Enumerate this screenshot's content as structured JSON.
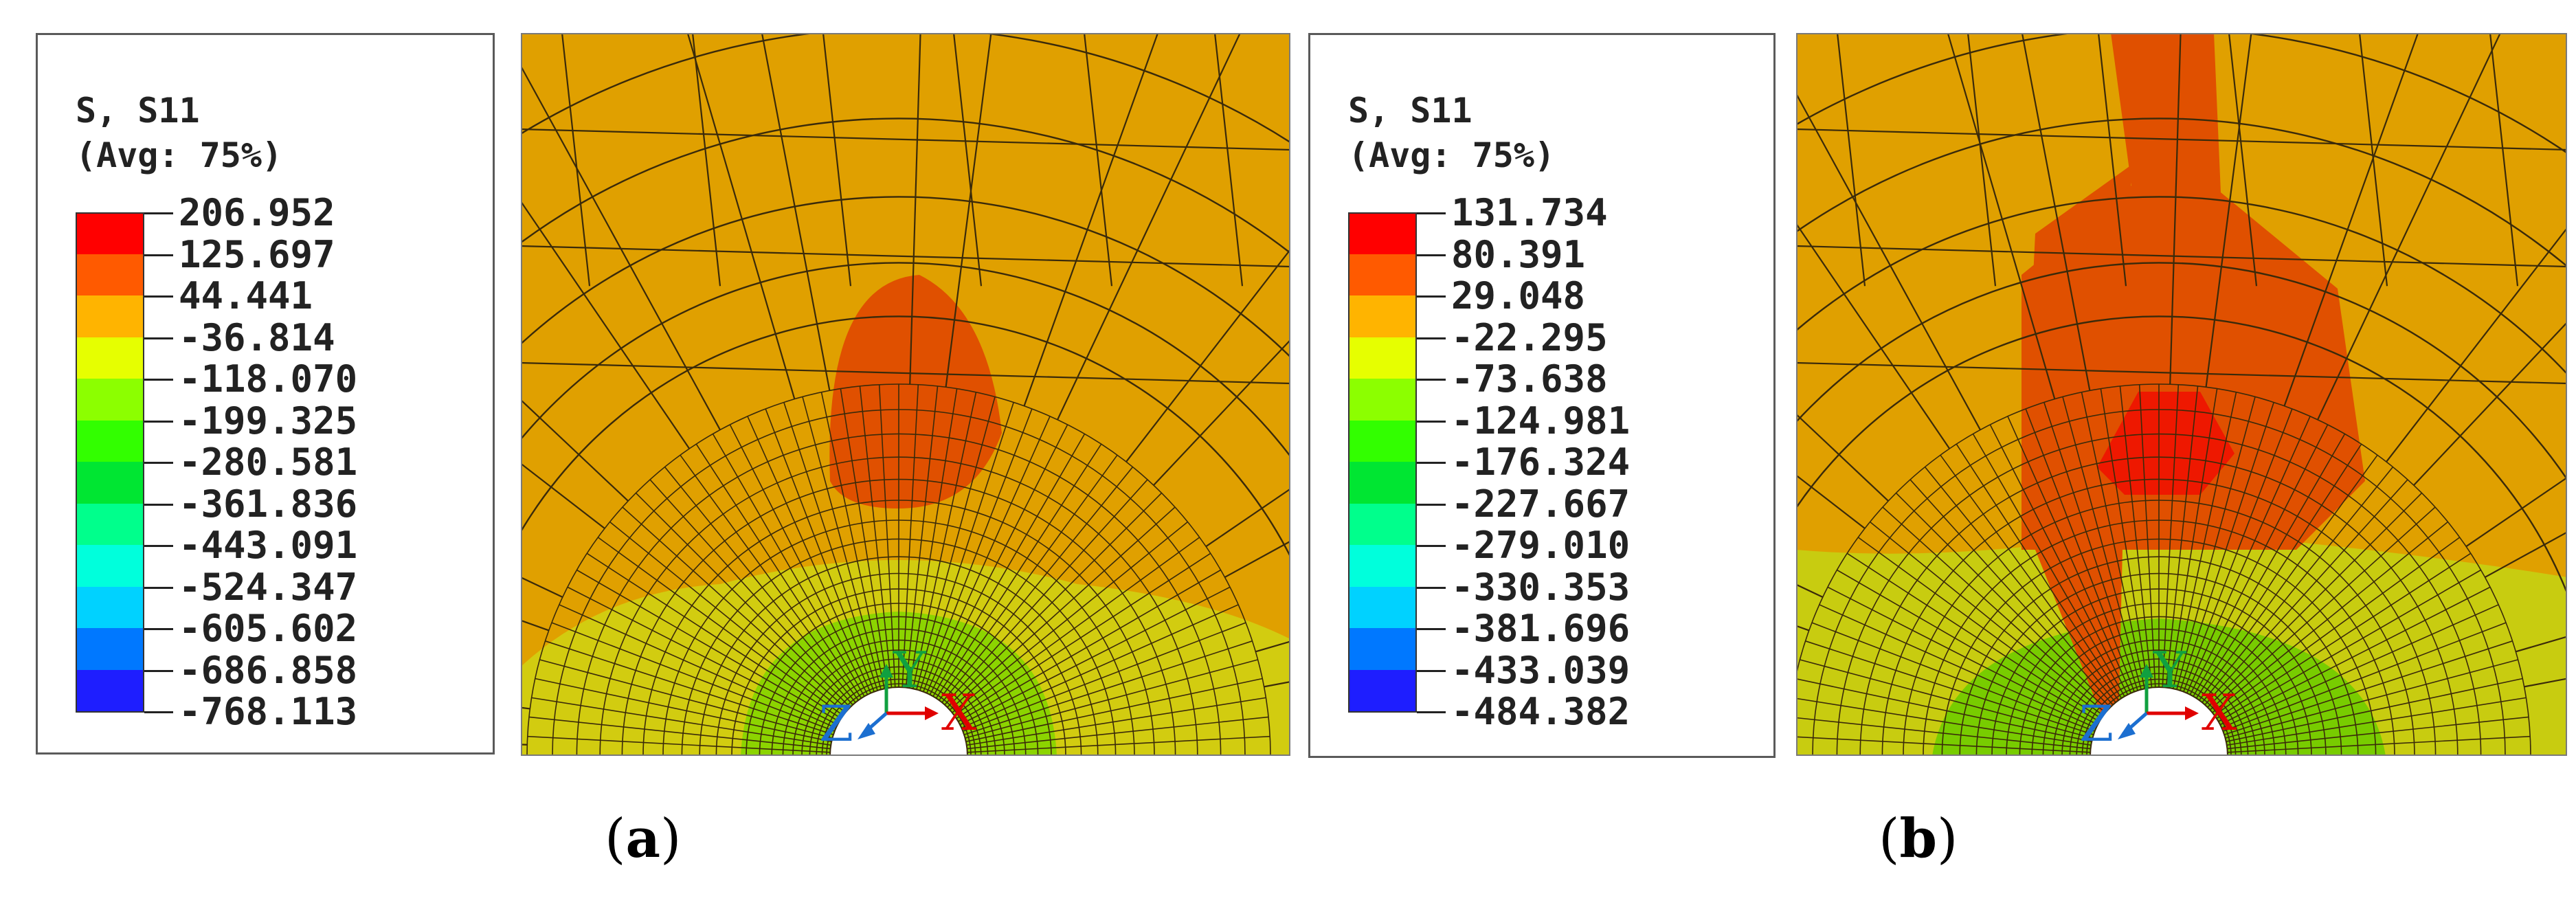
{
  "panels": [
    {
      "id": "a",
      "legend": {
        "title_line1": "S, S11",
        "title_line2": "(Avg: 75%)",
        "values": [
          "206.952",
          "125.697",
          "44.441",
          "-36.814",
          "-118.070",
          "-199.325",
          "-280.581",
          "-361.836",
          "-443.091",
          "-524.347",
          "-605.602",
          "-686.858",
          "-768.113"
        ]
      },
      "caption": {
        "open": "(",
        "letter": "a",
        "close": ")"
      },
      "triad": {
        "y": "Y",
        "x": "X",
        "z": "Z"
      }
    },
    {
      "id": "b",
      "legend": {
        "title_line1": "S, S11",
        "title_line2": "(Avg: 75%)",
        "values": [
          "131.734",
          "80.391",
          "29.048",
          "-22.295",
          "-73.638",
          "-124.981",
          "-176.324",
          "-227.667",
          "-279.010",
          "-330.353",
          "-381.696",
          "-433.039",
          "-484.382"
        ]
      },
      "caption": {
        "open": "(",
        "letter": "b",
        "close": ")"
      },
      "triad": {
        "y": "Y",
        "x": "X",
        "z": "Z"
      }
    }
  ],
  "contour_colors": [
    "#ff0000",
    "#ff5a00",
    "#ffb400",
    "#e6ff00",
    "#8cff00",
    "#32ff00",
    "#00e632",
    "#00ff8c",
    "#00ffdc",
    "#00d2ff",
    "#0078ff",
    "#1e1eff",
    "#0000ff"
  ],
  "triad_colors": {
    "x": "#e00000",
    "y": "#10a040",
    "z": "#1c6fd0"
  }
}
